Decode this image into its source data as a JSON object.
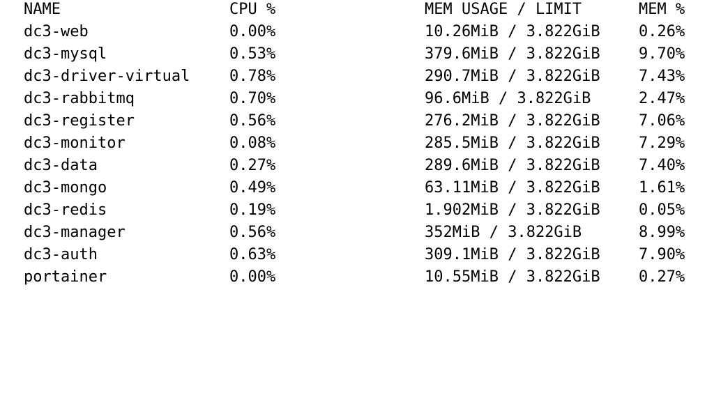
{
  "table": {
    "headers": {
      "name": "NAME",
      "cpu": "CPU %",
      "mem": "MEM USAGE / LIMIT",
      "mem_pct": "MEM %"
    },
    "rows": [
      {
        "name": "dc3-web",
        "cpu": "0.00%",
        "mem": "10.26MiB / 3.822GiB",
        "mem_pct": "0.26%"
      },
      {
        "name": "dc3-mysql",
        "cpu": "0.53%",
        "mem": "379.6MiB / 3.822GiB",
        "mem_pct": "9.70%"
      },
      {
        "name": "dc3-driver-virtual",
        "cpu": "0.78%",
        "mem": "290.7MiB / 3.822GiB",
        "mem_pct": "7.43%"
      },
      {
        "name": "dc3-rabbitmq",
        "cpu": "0.70%",
        "mem": "96.6MiB / 3.822GiB",
        "mem_pct": "2.47%"
      },
      {
        "name": "dc3-register",
        "cpu": "0.56%",
        "mem": "276.2MiB / 3.822GiB",
        "mem_pct": "7.06%"
      },
      {
        "name": "dc3-monitor",
        "cpu": "0.08%",
        "mem": "285.5MiB / 3.822GiB",
        "mem_pct": "7.29%"
      },
      {
        "name": "dc3-data",
        "cpu": "0.27%",
        "mem": "289.6MiB / 3.822GiB",
        "mem_pct": "7.40%"
      },
      {
        "name": "dc3-mongo",
        "cpu": "0.49%",
        "mem": "63.11MiB / 3.822GiB",
        "mem_pct": "1.61%"
      },
      {
        "name": "dc3-redis",
        "cpu": "0.19%",
        "mem": "1.902MiB / 3.822GiB",
        "mem_pct": "0.05%"
      },
      {
        "name": "dc3-manager",
        "cpu": "0.56%",
        "mem": "352MiB / 3.822GiB",
        "mem_pct": "8.99%"
      },
      {
        "name": "dc3-auth",
        "cpu": "0.63%",
        "mem": "309.1MiB / 3.822GiB",
        "mem_pct": "7.90%"
      },
      {
        "name": "portainer",
        "cpu": "0.00%",
        "mem": "10.55MiB / 3.822GiB",
        "mem_pct": "0.27%"
      }
    ]
  }
}
